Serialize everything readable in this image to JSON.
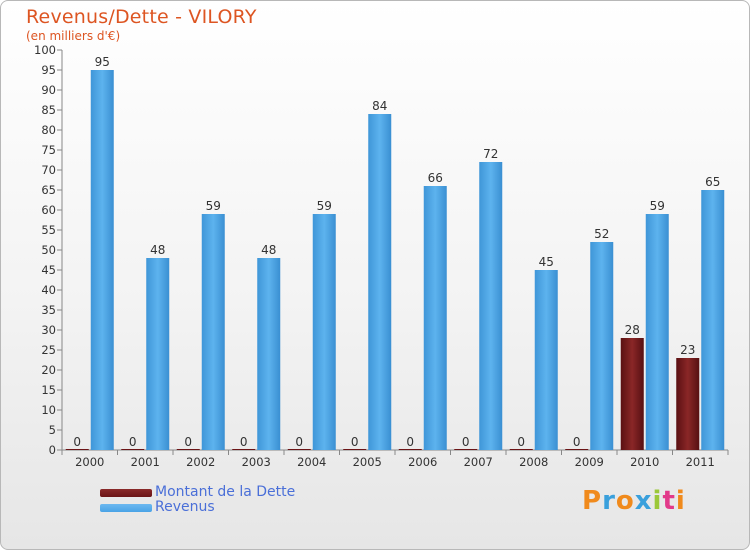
{
  "header": {
    "title": "Revenus/Dette - VILORY",
    "subtitle": "(en milliers d'€)"
  },
  "legend": {
    "items": [
      {
        "label": "Montant de la Dette",
        "color": "#6b1416"
      },
      {
        "label": "Revenus",
        "color": "#4aa3e6"
      }
    ]
  },
  "logo": {
    "letters": [
      "P",
      "r",
      "o",
      "x",
      "i",
      "t",
      "i"
    ],
    "colors": [
      "#f08a1c",
      "#3aa0dc",
      "#f08a1c",
      "#3aa0dc",
      "#9bc83a",
      "#e23a8a",
      "#f08a1c"
    ]
  },
  "chart_data": {
    "type": "bar",
    "title": "Revenus/Dette - VILORY",
    "subtitle": "(en milliers d'€)",
    "categories": [
      "2000",
      "2001",
      "2002",
      "2003",
      "2004",
      "2005",
      "2006",
      "2007",
      "2008",
      "2009",
      "2010",
      "2011"
    ],
    "series": [
      {
        "name": "Montant de la Dette",
        "color": "#6b1416",
        "values": [
          0,
          0,
          0,
          0,
          0,
          0,
          0,
          0,
          0,
          0,
          28,
          23
        ]
      },
      {
        "name": "Revenus",
        "color": "#4aa3e6",
        "values": [
          95,
          48,
          59,
          48,
          59,
          84,
          66,
          72,
          45,
          52,
          59,
          65
        ]
      }
    ],
    "ylim": [
      0,
      100
    ],
    "ytick_step": 5,
    "grid": false,
    "legend_position": "bottom-left"
  }
}
